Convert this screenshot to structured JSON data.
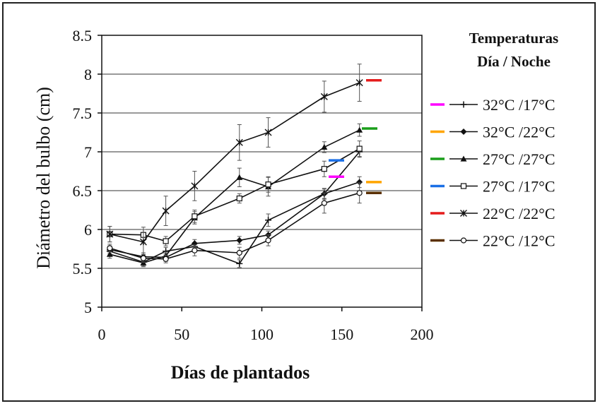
{
  "chart_data": {
    "type": "line",
    "title": "",
    "xlabel": "Días de plantados",
    "ylabel": "Diámetro del bulbo (cm)",
    "xlim": [
      0,
      200
    ],
    "ylim": [
      5,
      8.5
    ],
    "xticks": [
      "0",
      "50",
      "100",
      "150",
      "200"
    ],
    "yticks": [
      "5",
      "5.5",
      "6",
      "6.5",
      "7",
      "7.5",
      "8",
      "8.5"
    ],
    "grid": "horizontal",
    "legend_title": [
      "Temperaturas",
      "Día / Noche"
    ],
    "legend_position": "right",
    "x": [
      5,
      26,
      40,
      58,
      86,
      104,
      139,
      161
    ],
    "series": [
      {
        "name": "32°C /17°C",
        "marker": "plus",
        "color": "#ff00ff",
        "values": [
          5.72,
          5.58,
          5.72,
          5.78,
          5.56,
          6.12,
          6.46,
          7.0
        ],
        "errors": [
          0.05,
          0.05,
          0.05,
          0.05,
          0.05,
          0.08,
          0.06,
          0.07
        ],
        "end_bar": 6.68
      },
      {
        "name": "32°C /22°C",
        "marker": "diamond",
        "color": "#ffa500",
        "values": [
          5.74,
          5.65,
          5.64,
          5.82,
          5.86,
          5.93,
          6.46,
          6.61
        ],
        "errors": [
          0.05,
          0.05,
          0.05,
          0.05,
          0.05,
          0.05,
          0.07,
          0.07
        ],
        "end_bar": 6.61
      },
      {
        "name": "27°C /27°C",
        "marker": "triangle",
        "color": "#1a9e1a",
        "values": [
          5.68,
          5.57,
          5.66,
          6.15,
          6.67,
          6.55,
          7.06,
          7.28
        ],
        "errors": [
          0.05,
          0.05,
          0.05,
          0.08,
          0.12,
          0.12,
          0.07,
          0.08
        ],
        "end_bar": 7.3
      },
      {
        "name": "27°C /17°C",
        "marker": "square",
        "color": "#1a6fe6",
        "values": [
          5.94,
          5.93,
          5.85,
          6.17,
          6.4,
          6.58,
          6.78,
          7.04
        ],
        "errors": [
          0.1,
          0.1,
          0.06,
          0.08,
          0.06,
          0.1,
          0.1,
          0.1
        ],
        "end_bar": 6.89
      },
      {
        "name": "22°C /22°C",
        "marker": "star",
        "color": "#e51c1c",
        "values": [
          5.94,
          5.84,
          6.24,
          6.56,
          7.12,
          7.25,
          7.71,
          7.89
        ],
        "errors": [
          0.1,
          0.16,
          0.19,
          0.19,
          0.23,
          0.19,
          0.2,
          0.24
        ],
        "end_bar": 7.92
      },
      {
        "name": "22°C /12°C",
        "marker": "circle",
        "color": "#5a3000",
        "values": [
          5.76,
          5.63,
          5.62,
          5.73,
          5.7,
          5.86,
          6.34,
          6.47
        ],
        "errors": [
          0.05,
          0.05,
          0.05,
          0.07,
          0.07,
          0.07,
          0.13,
          0.13
        ],
        "end_bar": 6.47
      }
    ]
  }
}
